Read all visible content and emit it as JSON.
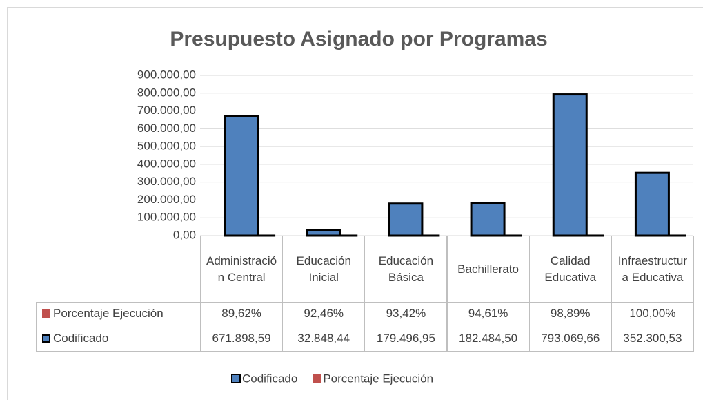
{
  "chart_data": {
    "type": "bar",
    "title": "Presupuesto Asignado por Programas",
    "categories": [
      "Administración Central",
      "Educación Inicial",
      "Educación Básica",
      "Bachillerato",
      "Calidad Educativa",
      "Infraestructura Educativa"
    ],
    "series": [
      {
        "name": "Codificado",
        "color": "#4f81bd",
        "values": [
          671898.59,
          32848.44,
          179496.95,
          182484.5,
          793069.66,
          352300.53
        ],
        "value_labels": [
          "671.898,59",
          "32.848,44",
          "179.496,95",
          "182.484,50",
          "793.069,66",
          "352.300,53"
        ]
      },
      {
        "name": "Porcentaje Ejecución",
        "color": "#c0504d",
        "values": [
          89.62,
          92.46,
          93.42,
          94.61,
          98.89,
          100
        ],
        "value_labels": [
          "89,62%",
          "92,46%",
          "93,42%",
          "94,61%",
          "98,89%",
          "100,00%"
        ]
      }
    ],
    "ylim": [
      0,
      900000
    ],
    "yticks": [
      {
        "value": 0,
        "label": "0,00"
      },
      {
        "value": 100000,
        "label": "100.000,00"
      },
      {
        "value": 200000,
        "label": "200.000,00"
      },
      {
        "value": 300000,
        "label": "300.000,00"
      },
      {
        "value": 400000,
        "label": "400.000,00"
      },
      {
        "value": 500000,
        "label": "500.000,00"
      },
      {
        "value": 600000,
        "label": "600.000,00"
      },
      {
        "value": 700000,
        "label": "700.000,00"
      },
      {
        "value": 800000,
        "label": "800.000,00"
      },
      {
        "value": 900000,
        "label": "900.000,00"
      }
    ],
    "grid": true,
    "legend": "bottom"
  }
}
